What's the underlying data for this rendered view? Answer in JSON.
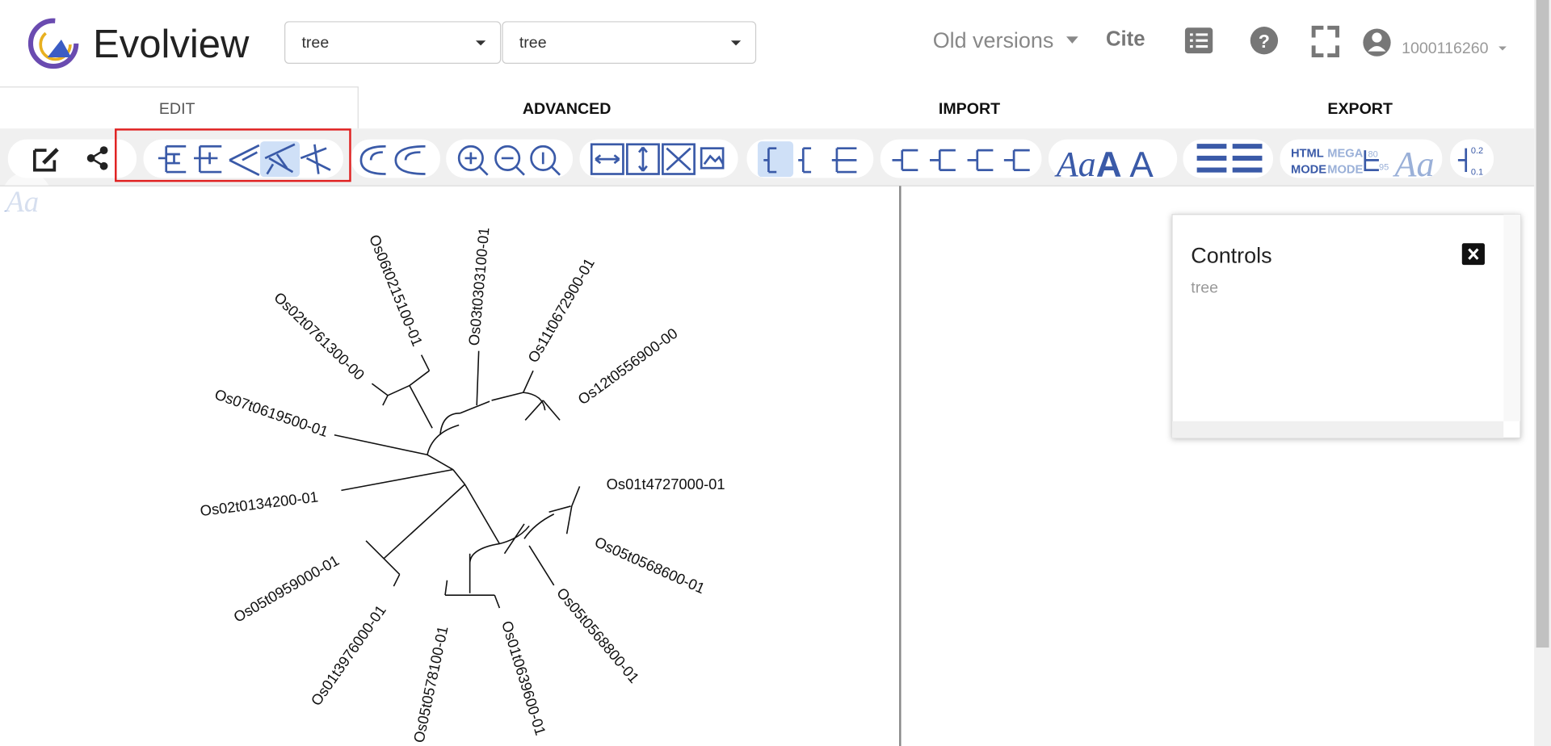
{
  "header": {
    "app_name": "Evolview",
    "selects": [
      "tree",
      "tree"
    ],
    "old_versions": "Old versions",
    "cite": "Cite",
    "user": "1000116260"
  },
  "tabs": [
    "EDIT",
    "ADVANCED",
    "IMPORT",
    "EXPORT"
  ],
  "toolbar": {
    "html_mode": [
      "HTML",
      "MODE"
    ],
    "mega_mode": [
      "MEGA",
      "MODE"
    ],
    "support_values": [
      "80",
      "95"
    ],
    "scale_values": [
      "0.2",
      "0.1"
    ],
    "font_icon": "Aa"
  },
  "controls": {
    "title": "Controls",
    "item": "tree"
  },
  "tree": {
    "leaves": [
      "Os06t0215100-01",
      "Os03t0303100-01",
      "Os11t0672900-01",
      "Os12t0556900-00",
      "Os02t0761300-00",
      "Os07t0619500-01",
      "Os02t0134200-01",
      "Os01t4727000-01",
      "Os05t0568600-01",
      "Os05t0568800-01",
      "Os01t0639600-01",
      "Os05t0578100-01",
      "Os01t3976000-01",
      "Os05t0959000-01"
    ]
  }
}
